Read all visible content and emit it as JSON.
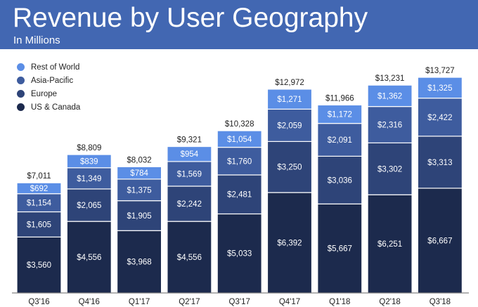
{
  "header": {
    "title": "Revenue by User Geography",
    "subtitle": "In Millions",
    "background": "#4267b2"
  },
  "chart_data": {
    "type": "bar",
    "stacked": true,
    "categories": [
      "Q3'16",
      "Q4'16",
      "Q1'17",
      "Q2'17",
      "Q3'17",
      "Q4'17",
      "Q1'18",
      "Q2'18",
      "Q3'18"
    ],
    "series": [
      {
        "name": "US & Canada",
        "color": "#1c2a4d",
        "values": [
          3560,
          4556,
          3968,
          4556,
          5033,
          6392,
          5667,
          6251,
          6667
        ],
        "labels": [
          "$3,560",
          "$4,556",
          "$3,968",
          "$4,556",
          "$5,033",
          "$6,392",
          "$5,667",
          "$6,251",
          "$6,667"
        ]
      },
      {
        "name": "Europe",
        "color": "#2e4478",
        "values": [
          1605,
          2065,
          1905,
          2242,
          2481,
          3250,
          3036,
          3302,
          3313
        ],
        "labels": [
          "$1,605",
          "$2,065",
          "$1,905",
          "$2,242",
          "$2,481",
          "$3,250",
          "$3,036",
          "$3,302",
          "$3,313"
        ]
      },
      {
        "name": "Asia-Pacific",
        "color": "#3e5c9e",
        "values": [
          1154,
          1349,
          1375,
          1569,
          1760,
          2059,
          2091,
          2316,
          2422
        ],
        "labels": [
          "$1,154",
          "$1,349",
          "$1,375",
          "$1,569",
          "$1,760",
          "$2,059",
          "$2,091",
          "$2,316",
          "$2,422"
        ]
      },
      {
        "name": "Rest of World",
        "color": "#5b8ee6",
        "values": [
          692,
          839,
          784,
          954,
          1054,
          1271,
          1172,
          1362,
          1325
        ],
        "labels": [
          "$692",
          "$839",
          "$784",
          "$954",
          "$1,054",
          "$1,271",
          "$1,172",
          "$1,362",
          "$1,325"
        ]
      }
    ],
    "totals": [
      7011,
      8809,
      8032,
      9321,
      10328,
      12972,
      11966,
      13231,
      13727
    ],
    "total_labels": [
      "$7,011",
      "$8,809",
      "$8,032",
      "$9,321",
      "$10,328",
      "$12,972",
      "$11,966",
      "$13,231",
      "$13,727"
    ],
    "legend_order": [
      "Rest of World",
      "Asia-Pacific",
      "Europe",
      "US & Canada"
    ],
    "legend_placement": "top-left",
    "ylim": [
      0,
      14000
    ],
    "grid": false,
    "xlabel": "",
    "ylabel": ""
  }
}
